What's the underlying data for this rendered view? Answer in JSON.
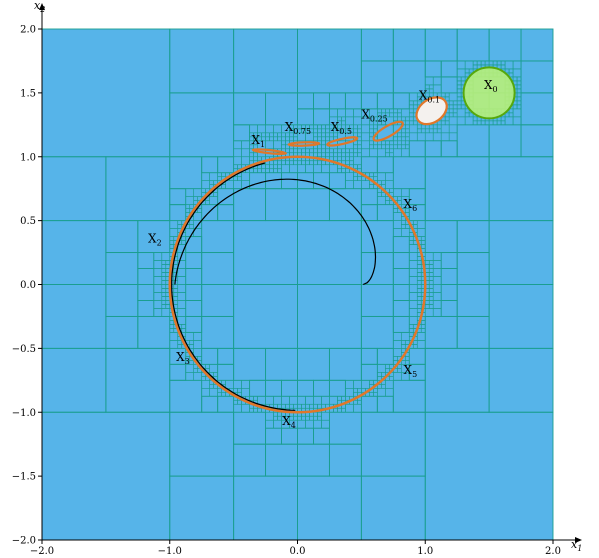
{
  "chart_data": {
    "type": "scatter",
    "title": "",
    "xlabel": "x1",
    "ylabel": "x2",
    "xlim": [
      -2.0,
      2.0
    ],
    "ylim": [
      -2.0,
      2.0
    ],
    "grid": false,
    "x_ticks": [
      "−2.0",
      "−1.0",
      "0.0",
      "1.0",
      "2.0"
    ],
    "x_ticks_values": [
      -2.0,
      -1.0,
      0.0,
      1.0,
      2.0
    ],
    "y_ticks": [
      "2.0",
      "1.5",
      "1.0",
      "0.5",
      "0.0",
      "−0.5",
      "−1.0",
      "−1.5",
      "−2.0"
    ],
    "y_ticks_values": [
      2.0,
      1.5,
      1.0,
      0.5,
      0.0,
      -0.5,
      -1.0,
      -1.5,
      -2.0
    ],
    "colors": {
      "background_boxes": "#56b4e9",
      "box_edges": "#1a9e8f",
      "initial_set_fill": "#b8f07a",
      "initial_set_edge": "#56a80c",
      "reach_set": "#e0772a",
      "trajectory": "#000000"
    },
    "initial_set": {
      "center": [
        1.5,
        1.5
      ],
      "radius": 0.2
    },
    "reach_sets": [
      {
        "label": "X",
        "sub": "0.1",
        "cx": 1.05,
        "cy": 1.36,
        "rx": 0.13,
        "ry": 0.09,
        "angle": -35
      },
      {
        "label": "X",
        "sub": "0.25",
        "cx": 0.71,
        "cy": 1.2,
        "rx": 0.13,
        "ry": 0.04,
        "angle": -30
      },
      {
        "label": "X",
        "sub": "0.5",
        "cx": 0.35,
        "cy": 1.12,
        "rx": 0.12,
        "ry": 0.02,
        "angle": -12
      },
      {
        "label": "X",
        "sub": "0.75",
        "cx": 0.05,
        "cy": 1.1,
        "rx": 0.12,
        "ry": 0.013,
        "angle": -2
      },
      {
        "label": "X",
        "sub": "1",
        "cx": -0.22,
        "cy": 1.04,
        "rx": 0.13,
        "ry": 0.012,
        "angle": 6
      }
    ],
    "limit_cycle": {
      "center": [
        0.0,
        0.0
      ],
      "radius": 1.0
    },
    "set_labels": [
      {
        "text": "X",
        "sub": "0",
        "x": 1.46,
        "y": 1.53
      },
      {
        "text": "X",
        "sub": "0.1",
        "x": 0.95,
        "y": 1.45
      },
      {
        "text": "X",
        "sub": "0.25",
        "x": 0.5,
        "y": 1.3
      },
      {
        "text": "X",
        "sub": "0.5",
        "x": 0.26,
        "y": 1.2
      },
      {
        "text": "X",
        "sub": "0.75",
        "x": -0.1,
        "y": 1.2
      },
      {
        "text": "X",
        "sub": "1",
        "x": -0.36,
        "y": 1.1
      },
      {
        "text": "X",
        "sub": "6",
        "x": 0.83,
        "y": 0.6
      },
      {
        "text": "X",
        "sub": "2",
        "x": -1.17,
        "y": 0.33
      },
      {
        "text": "X",
        "sub": "3",
        "x": -0.95,
        "y": -0.6
      },
      {
        "text": "X",
        "sub": "5",
        "x": 0.83,
        "y": -0.7
      },
      {
        "text": "X",
        "sub": "4",
        "x": -0.12,
        "y": -1.1
      }
    ],
    "trajectory_spiral": {
      "start": [
        0.5,
        0.0
      ],
      "end": [
        -1.0,
        0.0
      ],
      "turn_fraction": 0.5
    },
    "trajectory_arc": {
      "center": [
        0.0,
        0.0
      ],
      "radius": 1.0,
      "from_angle_deg": 105,
      "to_angle_deg": -90
    }
  }
}
